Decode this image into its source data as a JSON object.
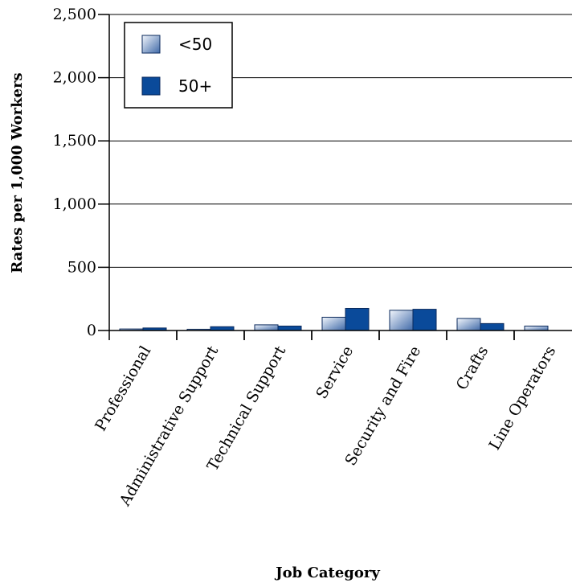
{
  "chart_data": {
    "type": "bar",
    "title": "",
    "xlabel": "Job Category",
    "ylabel": "Rates per 1,000 Workers",
    "ylim": [
      0,
      2500
    ],
    "yticks": [
      0,
      500,
      1000,
      1500,
      2000,
      2500
    ],
    "ytick_labels": [
      "0",
      "500",
      "1,000",
      "1,500",
      "2,000",
      "2,500"
    ],
    "grid": true,
    "legend_position": "top-left",
    "categories": [
      "Professional",
      "Administrative Support",
      "Technical Support",
      "Service",
      "Security and Fire",
      "Crafts",
      "Line Operators"
    ],
    "series": [
      {
        "name": "<50",
        "values": [
          12,
          10,
          45,
          105,
          160,
          95,
          35
        ]
      },
      {
        "name": "50+",
        "values": [
          20,
          30,
          35,
          175,
          168,
          55,
          0
        ]
      }
    ],
    "colors": {
      "series_light_top": "#e6eef9",
      "series_light_bottom": "#4f78b4",
      "series_dark": "#0a4a9a"
    }
  }
}
